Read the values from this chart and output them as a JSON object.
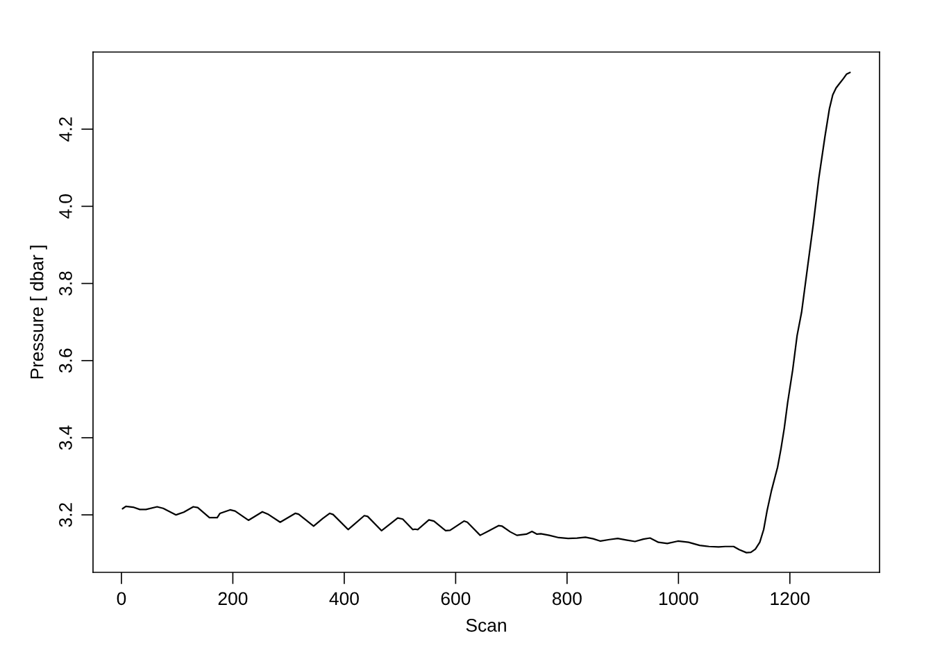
{
  "chart_data": {
    "type": "line",
    "xlabel": "Scan",
    "ylabel": "Pressure [ dbar ]",
    "x": [
      2,
      8,
      21,
      33,
      44,
      64,
      75,
      98,
      112,
      129,
      137,
      158,
      172,
      177,
      195,
      204,
      228,
      253,
      264,
      285,
      312,
      318,
      345,
      361,
      374,
      380,
      407,
      436,
      442,
      467,
      496,
      505,
      523,
      527,
      532,
      552,
      561,
      582,
      590,
      615,
      621,
      644,
      660,
      677,
      683,
      698,
      710,
      727,
      737,
      746,
      753,
      768,
      785,
      802,
      818,
      833,
      847,
      860,
      876,
      891,
      906,
      922,
      937,
      949,
      964,
      980,
      999,
      1018,
      1038,
      1055,
      1072,
      1084,
      1099,
      1109,
      1122,
      1130,
      1138,
      1146,
      1153,
      1159,
      1167,
      1178,
      1184,
      1190,
      1196,
      1205,
      1213,
      1221,
      1232,
      1242,
      1252,
      1263,
      1271,
      1277,
      1283,
      1290,
      1296,
      1302,
      1308
    ],
    "series": [
      {
        "color": "#000000",
        "values": [
          3.216,
          3.222,
          3.22,
          3.214,
          3.214,
          3.221,
          3.217,
          3.2,
          3.207,
          3.221,
          3.219,
          3.193,
          3.193,
          3.204,
          3.213,
          3.21,
          3.186,
          3.208,
          3.201,
          3.181,
          3.204,
          3.202,
          3.171,
          3.19,
          3.204,
          3.201,
          3.162,
          3.198,
          3.196,
          3.159,
          3.192,
          3.189,
          3.162,
          3.163,
          3.162,
          3.187,
          3.184,
          3.159,
          3.16,
          3.184,
          3.181,
          3.147,
          3.159,
          3.172,
          3.171,
          3.156,
          3.147,
          3.15,
          3.157,
          3.15,
          3.151,
          3.147,
          3.141,
          3.139,
          3.14,
          3.142,
          3.138,
          3.132,
          3.136,
          3.139,
          3.135,
          3.131,
          3.137,
          3.14,
          3.129,
          3.126,
          3.132,
          3.129,
          3.121,
          3.118,
          3.117,
          3.118,
          3.118,
          3.11,
          3.102,
          3.103,
          3.111,
          3.129,
          3.162,
          3.21,
          3.263,
          3.324,
          3.371,
          3.425,
          3.491,
          3.575,
          3.665,
          3.725,
          3.845,
          3.953,
          4.073,
          4.181,
          4.253,
          4.289,
          4.307,
          4.32,
          4.331,
          4.343,
          4.347
        ]
      }
    ],
    "xlim": [
      -51,
      1361
    ],
    "ylim": [
      3.051,
      4.4
    ],
    "xticks": [
      0,
      200,
      400,
      600,
      800,
      1000,
      1200
    ],
    "yticks": [
      3.2,
      3.4,
      3.6,
      3.8,
      {
        "value": 4.0,
        "label": "4.0"
      },
      4.2
    ],
    "grid": false,
    "line_style": "solid",
    "marker": "none"
  }
}
